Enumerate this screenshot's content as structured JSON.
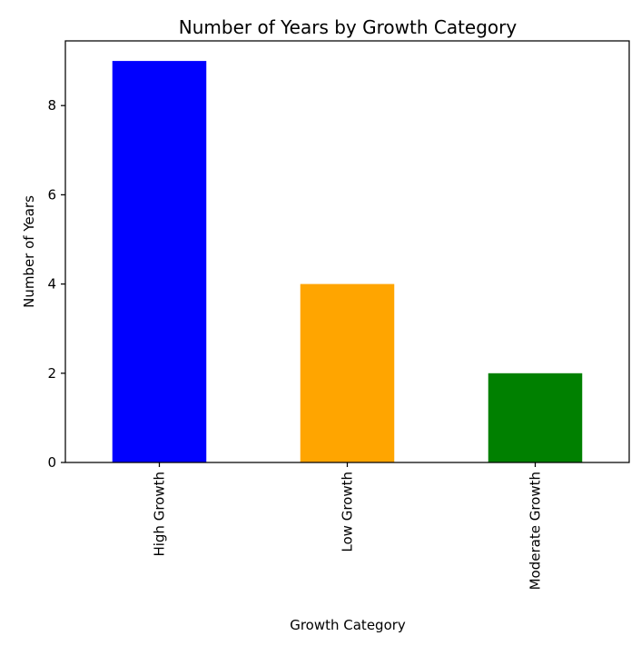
{
  "chart_data": {
    "type": "bar",
    "title": "Number of Years by Growth Category",
    "xlabel": "Growth Category",
    "ylabel": "Number of Years",
    "categories": [
      "High Growth",
      "Low Growth",
      "Moderate Growth"
    ],
    "values": [
      9,
      4,
      2
    ],
    "colors": [
      "#0000ff",
      "#ffa500",
      "#008000"
    ],
    "ylim": [
      0,
      9.45
    ],
    "yticks": [
      0,
      2,
      4,
      6,
      8
    ],
    "ytick_labels": [
      "0",
      "2",
      "4",
      "6",
      "8"
    ],
    "grid": false,
    "x_tick_rotation": "vertical"
  }
}
